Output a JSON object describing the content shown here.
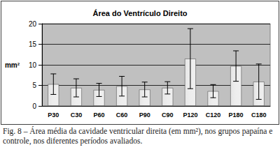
{
  "chart_data": {
    "type": "bar",
    "title": "Área do Ventrículo Direito",
    "y_label": "mm²",
    "caption": "Fig. 8 – Área média da cavidade ventricular direita (em mm²), nos grupos papaína e controle, nos diferentes períodos avaliados.",
    "categories": [
      "P30",
      "C30",
      "P60",
      "C60",
      "P90",
      "C90",
      "P120",
      "C120",
      "P180",
      "C180"
    ],
    "values": [
      5.3,
      4.4,
      3.9,
      4.8,
      4.0,
      4.4,
      11.5,
      3.6,
      9.7,
      5.9
    ],
    "errors": [
      2.5,
      2.2,
      1.6,
      2.4,
      1.8,
      1.5,
      7.3,
      1.6,
      3.7,
      4.3
    ],
    "color": "#b8b8b8",
    "ylim": [
      0,
      20
    ],
    "yticks": [
      0,
      5,
      10,
      15,
      20
    ],
    "grid": true
  }
}
